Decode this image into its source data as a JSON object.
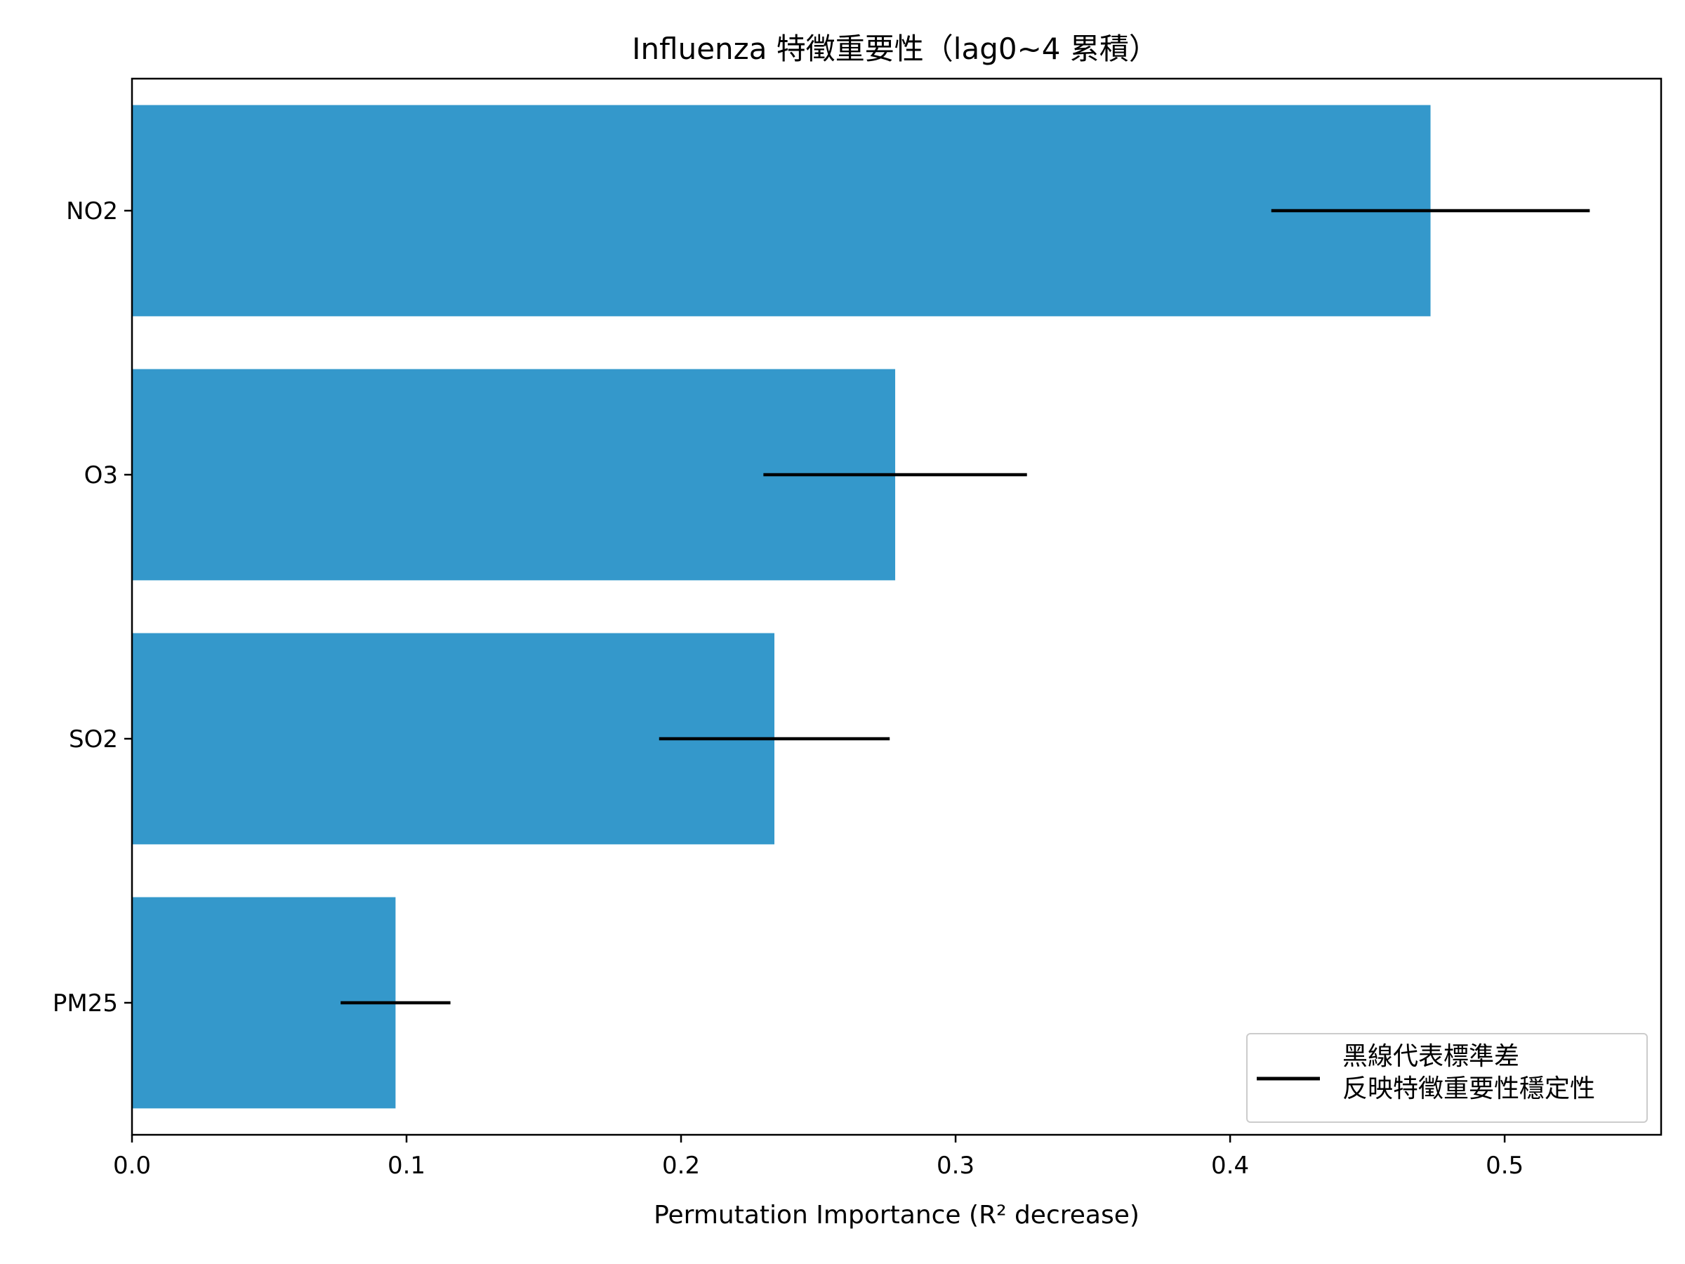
{
  "chart_data": {
    "type": "bar",
    "orientation": "horizontal",
    "title": "Influenza 特徵重要性（lag0~4 累積）",
    "xlabel": "Permutation Importance (R² decrease)",
    "ylabel": "",
    "xlim": [
      0,
      0.557
    ],
    "xticks": [
      0.0,
      0.1,
      0.2,
      0.3,
      0.4,
      0.5
    ],
    "xtick_labels": [
      "0.0",
      "0.1",
      "0.2",
      "0.3",
      "0.4",
      "0.5"
    ],
    "categories": [
      "NO2",
      "O3",
      "SO2",
      "PM25"
    ],
    "values": [
      0.473,
      0.278,
      0.234,
      0.096
    ],
    "error": [
      0.058,
      0.048,
      0.042,
      0.02
    ],
    "bar_color": "#3498cb",
    "error_color": "#000000",
    "grid": false,
    "legend": {
      "placement": "lower right",
      "entries": [
        "黑線代表標準差",
        "反映特徵重要性穩定性"
      ]
    }
  }
}
